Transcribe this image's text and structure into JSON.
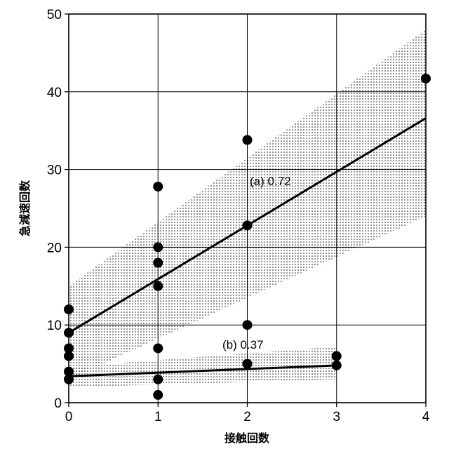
{
  "chart_data": {
    "type": "scatter",
    "title": "",
    "xlabel": "接触回数",
    "ylabel": "急減速回数",
    "xlim": [
      0,
      4
    ],
    "ylim": [
      0,
      50
    ],
    "x_ticks": [
      "0",
      "1",
      "2",
      "3",
      "4"
    ],
    "y_ticks": [
      "0",
      "10",
      "20",
      "30",
      "40",
      "50"
    ],
    "grid": true,
    "colors": {
      "marker": "#000000",
      "line": "#000000",
      "band": "#000000",
      "grid": "#000000"
    },
    "series": [
      {
        "label": "(a) 0.72",
        "points": [
          [
            0,
            12
          ],
          [
            0,
            9
          ],
          [
            1,
            27.8
          ],
          [
            1,
            20
          ],
          [
            1,
            18
          ],
          [
            1,
            15
          ],
          [
            2,
            33.8
          ],
          [
            2,
            22.8
          ],
          [
            2,
            10
          ],
          [
            4,
            41.7
          ]
        ],
        "fit": {
          "x": [
            0,
            4
          ],
          "y": [
            9.0,
            36.6
          ]
        },
        "band_upper": {
          "x": [
            0,
            4
          ],
          "y": [
            15,
            48
          ]
        },
        "band_lower": {
          "x": [
            0,
            4
          ],
          "y": [
            3,
            24
          ]
        }
      },
      {
        "label": "(b) 0.37",
        "points": [
          [
            0,
            7
          ],
          [
            0,
            6
          ],
          [
            0,
            4
          ],
          [
            0,
            3
          ],
          [
            1,
            7
          ],
          [
            1,
            3
          ],
          [
            1,
            1
          ],
          [
            2,
            5
          ],
          [
            3,
            6
          ],
          [
            3,
            4.8
          ]
        ],
        "fit": {
          "x": [
            0,
            3
          ],
          "y": [
            3.4,
            4.8
          ]
        },
        "band_upper": {
          "x": [
            0,
            3
          ],
          "y": [
            4.6,
            7.2
          ]
        },
        "band_lower": {
          "x": [
            0,
            3
          ],
          "y": [
            2.0,
            3.0
          ]
        }
      }
    ]
  }
}
